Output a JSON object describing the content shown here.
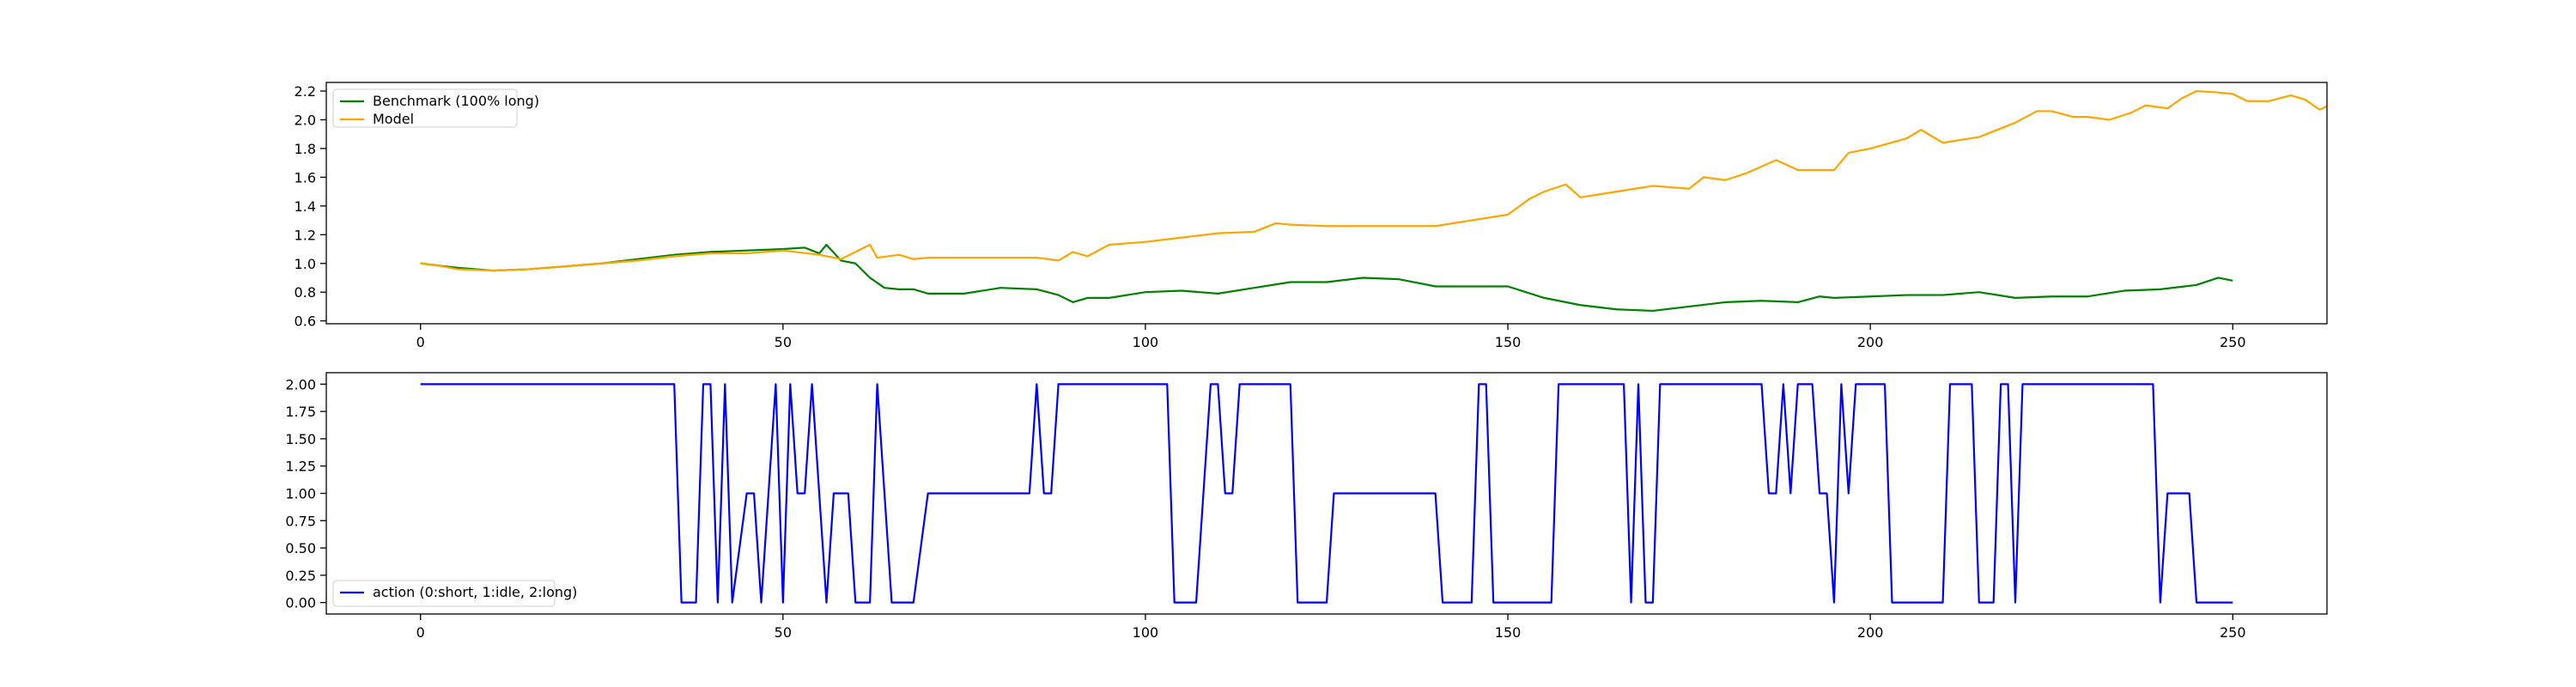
{
  "chart_data": [
    {
      "type": "line",
      "title": "",
      "xlabel": "",
      "ylabel": "",
      "xlim": [
        -13,
        263
      ],
      "ylim": [
        0.58,
        2.26
      ],
      "xticks": [
        0,
        50,
        100,
        150,
        200,
        250
      ],
      "xtick_labels": [
        "0",
        "50",
        "100",
        "150",
        "200",
        "250"
      ],
      "yticks": [
        0.6,
        0.8,
        1.0,
        1.2,
        1.4,
        1.6,
        1.8,
        2.0,
        2.2
      ],
      "ytick_labels": [
        "0.6",
        "0.8",
        "1.0",
        "1.2",
        "1.4",
        "1.6",
        "1.8",
        "2.0",
        "2.2"
      ],
      "grid": false,
      "legend_position": "upper left",
      "series": [
        {
          "name": "Benchmark (100% long)",
          "color": "#008000",
          "points": [
            [
              0,
              1.0
            ],
            [
              5,
              0.97
            ],
            [
              10,
              0.95
            ],
            [
              15,
              0.96
            ],
            [
              20,
              0.98
            ],
            [
              25,
              1.0
            ],
            [
              30,
              1.03
            ],
            [
              35,
              1.06
            ],
            [
              40,
              1.08
            ],
            [
              45,
              1.09
            ],
            [
              50,
              1.1
            ],
            [
              53,
              1.11
            ],
            [
              55,
              1.07
            ],
            [
              56,
              1.13
            ],
            [
              58,
              1.02
            ],
            [
              60,
              1.0
            ],
            [
              62,
              0.9
            ],
            [
              64,
              0.83
            ],
            [
              66,
              0.82
            ],
            [
              68,
              0.82
            ],
            [
              70,
              0.79
            ],
            [
              75,
              0.79
            ],
            [
              80,
              0.83
            ],
            [
              85,
              0.82
            ],
            [
              88,
              0.78
            ],
            [
              90,
              0.73
            ],
            [
              92,
              0.76
            ],
            [
              95,
              0.76
            ],
            [
              100,
              0.8
            ],
            [
              105,
              0.81
            ],
            [
              110,
              0.79
            ],
            [
              115,
              0.83
            ],
            [
              120,
              0.87
            ],
            [
              125,
              0.87
            ],
            [
              130,
              0.9
            ],
            [
              135,
              0.89
            ],
            [
              140,
              0.84
            ],
            [
              145,
              0.84
            ],
            [
              150,
              0.84
            ],
            [
              155,
              0.76
            ],
            [
              160,
              0.71
            ],
            [
              165,
              0.68
            ],
            [
              170,
              0.67
            ],
            [
              175,
              0.7
            ],
            [
              180,
              0.73
            ],
            [
              185,
              0.74
            ],
            [
              190,
              0.73
            ],
            [
              193,
              0.77
            ],
            [
              195,
              0.76
            ],
            [
              200,
              0.77
            ],
            [
              205,
              0.78
            ],
            [
              210,
              0.78
            ],
            [
              215,
              0.8
            ],
            [
              220,
              0.76
            ],
            [
              225,
              0.77
            ],
            [
              230,
              0.77
            ],
            [
              235,
              0.81
            ],
            [
              240,
              0.82
            ],
            [
              245,
              0.85
            ],
            [
              248,
              0.9
            ],
            [
              250,
              0.88
            ]
          ]
        },
        {
          "name": "Model",
          "color": "#FFA500",
          "points": [
            [
              0,
              1.0
            ],
            [
              3,
              0.98
            ],
            [
              5,
              0.96
            ],
            [
              10,
              0.95
            ],
            [
              15,
              0.96
            ],
            [
              20,
              0.98
            ],
            [
              25,
              1.0
            ],
            [
              30,
              1.02
            ],
            [
              35,
              1.05
            ],
            [
              40,
              1.07
            ],
            [
              45,
              1.07
            ],
            [
              50,
              1.09
            ],
            [
              55,
              1.06
            ],
            [
              58,
              1.03
            ],
            [
              62,
              1.13
            ],
            [
              63,
              1.04
            ],
            [
              66,
              1.06
            ],
            [
              68,
              1.03
            ],
            [
              70,
              1.04
            ],
            [
              75,
              1.04
            ],
            [
              80,
              1.04
            ],
            [
              85,
              1.04
            ],
            [
              88,
              1.02
            ],
            [
              90,
              1.08
            ],
            [
              92,
              1.05
            ],
            [
              95,
              1.13
            ],
            [
              100,
              1.15
            ],
            [
              105,
              1.18
            ],
            [
              110,
              1.21
            ],
            [
              115,
              1.22
            ],
            [
              118,
              1.28
            ],
            [
              120,
              1.27
            ],
            [
              125,
              1.26
            ],
            [
              130,
              1.26
            ],
            [
              135,
              1.26
            ],
            [
              140,
              1.26
            ],
            [
              145,
              1.3
            ],
            [
              150,
              1.34
            ],
            [
              153,
              1.45
            ],
            [
              155,
              1.5
            ],
            [
              158,
              1.55
            ],
            [
              160,
              1.46
            ],
            [
              165,
              1.5
            ],
            [
              170,
              1.54
            ],
            [
              175,
              1.52
            ],
            [
              177,
              1.6
            ],
            [
              180,
              1.58
            ],
            [
              183,
              1.63
            ],
            [
              187,
              1.72
            ],
            [
              190,
              1.65
            ],
            [
              195,
              1.65
            ],
            [
              197,
              1.77
            ],
            [
              200,
              1.8
            ],
            [
              205,
              1.87
            ],
            [
              207,
              1.93
            ],
            [
              210,
              1.84
            ],
            [
              215,
              1.88
            ],
            [
              220,
              1.98
            ],
            [
              223,
              2.06
            ],
            [
              225,
              2.06
            ],
            [
              228,
              2.02
            ],
            [
              230,
              2.02
            ],
            [
              233,
              2.0
            ],
            [
              236,
              2.05
            ],
            [
              238,
              2.1
            ],
            [
              241,
              2.08
            ],
            [
              243,
              2.15
            ],
            [
              245,
              2.2
            ],
            [
              248,
              2.19
            ],
            [
              250,
              2.18
            ],
            [
              252,
              2.13
            ],
            [
              255,
              2.13
            ],
            [
              258,
              2.17
            ],
            [
              260,
              2.14
            ],
            [
              262,
              2.07
            ],
            [
              264,
              2.12
            ],
            [
              265,
              2.11
            ]
          ]
        }
      ]
    },
    {
      "type": "line",
      "title": "",
      "xlabel": "",
      "ylabel": "",
      "xlim": [
        -13,
        263
      ],
      "ylim": [
        -0.105,
        2.105
      ],
      "xticks": [
        0,
        50,
        100,
        150,
        200,
        250
      ],
      "xtick_labels": [
        "0",
        "50",
        "100",
        "150",
        "200",
        "250"
      ],
      "yticks": [
        0.0,
        0.25,
        0.5,
        0.75,
        1.0,
        1.25,
        1.5,
        1.75,
        2.0
      ],
      "ytick_labels": [
        "0.00",
        "0.25",
        "0.50",
        "0.75",
        "1.00",
        "1.25",
        "1.50",
        "1.75",
        "2.00"
      ],
      "grid": false,
      "legend_position": "lower left",
      "series": [
        {
          "name": "action (0:short, 1:idle, 2:long)",
          "color": "#0000FF",
          "points": [
            [
              0,
              2
            ],
            [
              35,
              2
            ],
            [
              36,
              0
            ],
            [
              38,
              0
            ],
            [
              39,
              2
            ],
            [
              40,
              2
            ],
            [
              41,
              0
            ],
            [
              42,
              2
            ],
            [
              43,
              0
            ],
            [
              45,
              1
            ],
            [
              46,
              1
            ],
            [
              47,
              0
            ],
            [
              49,
              2
            ],
            [
              50,
              0
            ],
            [
              51,
              2
            ],
            [
              52,
              1
            ],
            [
              53,
              1
            ],
            [
              54,
              2
            ],
            [
              56,
              0
            ],
            [
              57,
              1
            ],
            [
              59,
              1
            ],
            [
              60,
              0
            ],
            [
              62,
              0
            ],
            [
              63,
              2
            ],
            [
              65,
              0
            ],
            [
              68,
              0
            ],
            [
              70,
              1
            ],
            [
              84,
              1
            ],
            [
              85,
              2
            ],
            [
              86,
              1
            ],
            [
              87,
              1
            ],
            [
              88,
              2
            ],
            [
              103,
              2
            ],
            [
              104,
              0
            ],
            [
              107,
              0
            ],
            [
              109,
              2
            ],
            [
              110,
              2
            ],
            [
              111,
              1
            ],
            [
              112,
              1
            ],
            [
              113,
              2
            ],
            [
              120,
              2
            ],
            [
              121,
              0
            ],
            [
              125,
              0
            ],
            [
              126,
              1
            ],
            [
              140,
              1
            ],
            [
              141,
              0
            ],
            [
              145,
              0
            ],
            [
              146,
              2
            ],
            [
              147,
              2
            ],
            [
              148,
              0
            ],
            [
              156,
              0
            ],
            [
              157,
              2
            ],
            [
              166,
              2
            ],
            [
              167,
              0
            ],
            [
              168,
              2
            ],
            [
              169,
              0
            ],
            [
              170,
              0
            ],
            [
              171,
              2
            ],
            [
              185,
              2
            ],
            [
              186,
              1
            ],
            [
              187,
              1
            ],
            [
              188,
              2
            ],
            [
              189,
              1
            ],
            [
              190,
              2
            ],
            [
              192,
              2
            ],
            [
              193,
              1
            ],
            [
              194,
              1
            ],
            [
              195,
              0
            ],
            [
              196,
              2
            ],
            [
              197,
              1
            ],
            [
              198,
              2
            ],
            [
              202,
              2
            ],
            [
              203,
              0
            ],
            [
              210,
              0
            ],
            [
              211,
              2
            ],
            [
              214,
              2
            ],
            [
              215,
              0
            ],
            [
              217,
              0
            ],
            [
              218,
              2
            ],
            [
              219,
              2
            ],
            [
              220,
              0
            ],
            [
              221,
              2
            ],
            [
              239,
              2
            ],
            [
              240,
              0
            ],
            [
              241,
              1
            ],
            [
              244,
              1
            ],
            [
              245,
              0
            ],
            [
              250,
              0
            ]
          ]
        }
      ]
    }
  ]
}
